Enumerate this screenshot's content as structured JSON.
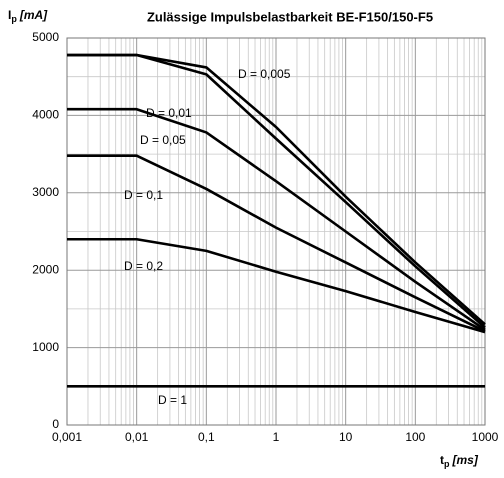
{
  "chart_data": {
    "type": "line",
    "title": "Zulässige Impulsbelastbarkeit BE-F150/150-F5",
    "y_label_symbol": "I",
    "y_label_subscript": "p",
    "y_label_unit": "[mA]",
    "x_label_symbol": "t",
    "x_label_subscript": "p",
    "x_label_unit": "[ms]",
    "x_scale": "log",
    "x": [
      0.001,
      0.01,
      0.1,
      1,
      10,
      100,
      1000
    ],
    "series": [
      {
        "name": "D = 0,005",
        "color": "#000000",
        "values": [
          4780,
          4780,
          4620,
          3850,
          2950,
          2100,
          1300
        ]
      },
      {
        "name": "D = 0,01",
        "color": "#000000",
        "values": [
          4780,
          4780,
          4530,
          3700,
          2880,
          2050,
          1260
        ]
      },
      {
        "name": "D = 0,05",
        "color": "#000000",
        "values": [
          4080,
          4080,
          3780,
          3150,
          2500,
          1850,
          1230
        ]
      },
      {
        "name": "D = 0,1",
        "color": "#000000",
        "values": [
          3480,
          3480,
          3050,
          2550,
          2100,
          1650,
          1210
        ]
      },
      {
        "name": "D = 0,2",
        "color": "#000000",
        "values": [
          2400,
          2400,
          2250,
          1980,
          1730,
          1460,
          1200
        ]
      },
      {
        "name": "D = 1",
        "color": "#000000",
        "values": [
          500,
          500,
          500,
          500,
          500,
          500,
          500
        ]
      }
    ],
    "xlim": [
      0.001,
      1000
    ],
    "xticks": [
      {
        "value": 0.001,
        "label": "0,001"
      },
      {
        "value": 0.01,
        "label": "0,01"
      },
      {
        "value": 0.1,
        "label": "0,1"
      },
      1,
      10,
      100,
      1000
    ],
    "ylim": [
      0,
      5000
    ],
    "yticks": [
      0,
      1000,
      2000,
      3000,
      4000,
      5000
    ],
    "grid": true
  }
}
